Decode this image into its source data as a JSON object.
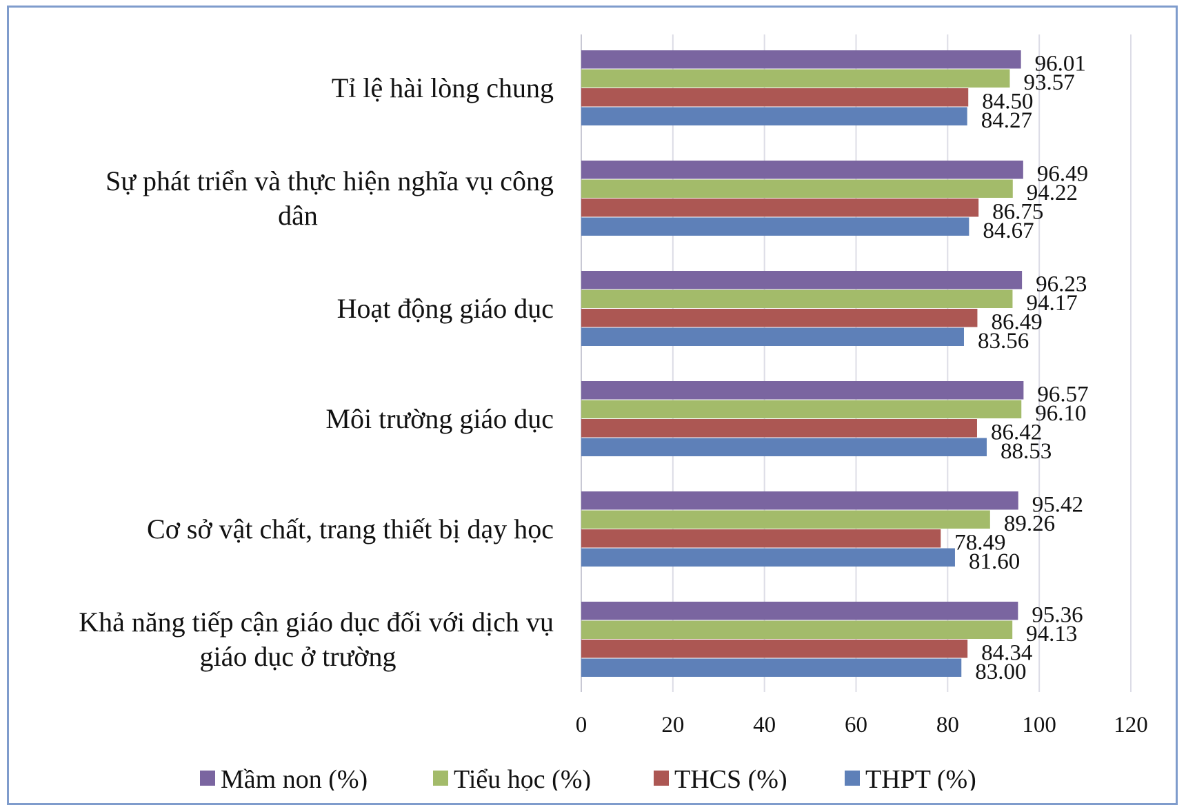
{
  "chart_data": {
    "type": "bar",
    "orientation": "horizontal",
    "categories": [
      [
        "Tỉ lệ hài lòng chung"
      ],
      [
        "Sự phát triển và thực hiện nghĩa vụ công",
        "dân"
      ],
      [
        "Hoạt động giáo dục"
      ],
      [
        "Môi trường giáo dục"
      ],
      [
        "Cơ sở vật chất, trang thiết bị dạy học"
      ],
      [
        "Khả năng tiếp cận giáo dục đối với dịch vụ",
        "giáo dục ở trường"
      ]
    ],
    "series": [
      {
        "name": "Mầm non (%)",
        "color": "#7a65a0",
        "values": [
          96.01,
          96.49,
          96.23,
          96.57,
          95.42,
          95.36
        ]
      },
      {
        "name": "Tiểu học (%)",
        "color": "#a3bb6a",
        "values": [
          93.57,
          94.22,
          94.17,
          96.1,
          89.26,
          94.13
        ]
      },
      {
        "name": "THCS (%)",
        "color": "#ac5753",
        "values": [
          84.5,
          86.75,
          86.49,
          86.42,
          78.49,
          84.34
        ]
      },
      {
        "name": "THPT (%)",
        "color": "#5e80b8",
        "values": [
          84.27,
          84.67,
          83.56,
          88.53,
          81.6,
          83.0
        ]
      }
    ],
    "data_labels": [
      [
        "96.01",
        "93.57",
        "84.50",
        "84.27"
      ],
      [
        "96.49",
        "94.22",
        "86.75",
        "84.67"
      ],
      [
        "96.23",
        "94.17",
        "86.49",
        "83.56"
      ],
      [
        "96.57",
        "96.10",
        "86.42",
        "88.53"
      ],
      [
        "95.42",
        "89.26",
        "78.49",
        "81.60"
      ],
      [
        "95.36",
        "94.13",
        "84.34",
        "83.00"
      ]
    ],
    "x_ticks": [
      "0",
      "20",
      "40",
      "60",
      "80",
      "100",
      "120"
    ],
    "xlim": [
      0,
      120
    ],
    "grid": "vertical",
    "legend": "bottom",
    "title": "",
    "xlabel": "",
    "ylabel": ""
  }
}
